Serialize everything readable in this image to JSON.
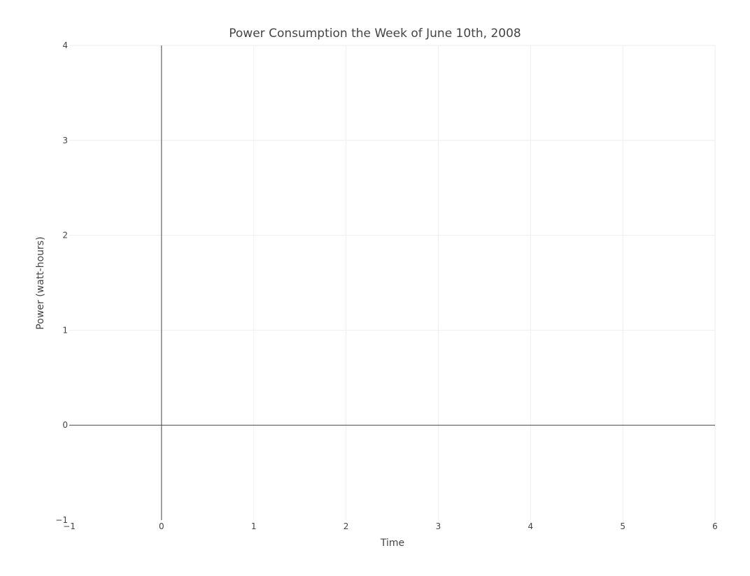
{
  "chart_data": {
    "type": "line",
    "title": "Power Consumption the Week of June 10th, 2008",
    "xlabel": "Time",
    "ylabel": "Power (watt-hours)",
    "xlim": [
      -1,
      6
    ],
    "ylim": [
      -1,
      4
    ],
    "x_ticks": [
      -1,
      0,
      1,
      2,
      3,
      4,
      5,
      6
    ],
    "x_tick_labels": [
      "−1",
      "0",
      "1",
      "2",
      "3",
      "4",
      "5",
      "6"
    ],
    "y_ticks": [
      -1,
      0,
      1,
      2,
      3,
      4
    ],
    "y_tick_labels": [
      "−1",
      "0",
      "1",
      "2",
      "3",
      "4"
    ],
    "grid": true,
    "zero_lines": true,
    "series": []
  }
}
